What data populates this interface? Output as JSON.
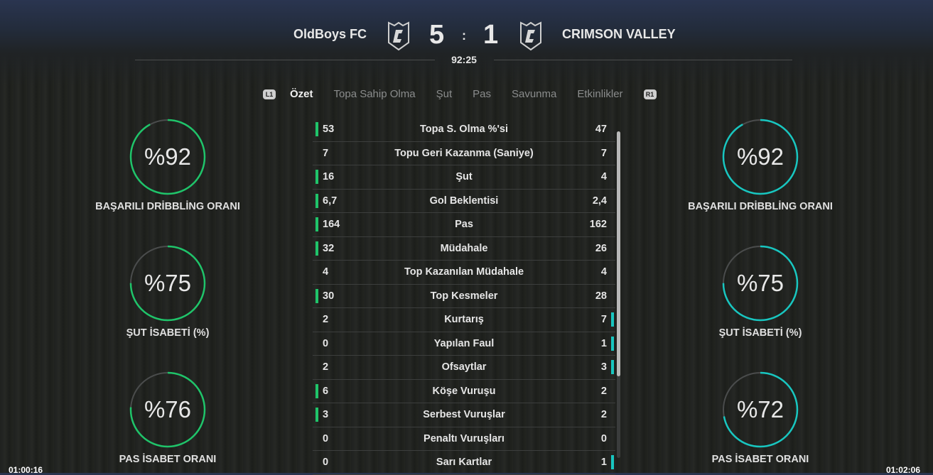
{
  "header": {
    "home_team": "OldBoys FC",
    "away_team": "CRIMSON VALLEY",
    "home_score": "5",
    "separator": ":",
    "away_score": "1",
    "clock": "92:25"
  },
  "tabs": {
    "left_button": "L1",
    "right_button": "R1",
    "items": [
      {
        "label": "Özet",
        "active": true
      },
      {
        "label": "Topa Sahip Olma"
      },
      {
        "label": "Şut"
      },
      {
        "label": "Pas"
      },
      {
        "label": "Savunma"
      },
      {
        "label": "Etkinlikler"
      }
    ]
  },
  "stats": [
    {
      "label": "Topa S. Olma %'si",
      "home": "53",
      "away": "47",
      "lead": "home"
    },
    {
      "label": "Topu Geri Kazanma (Saniye)",
      "home": "7",
      "away": "7",
      "lead": ""
    },
    {
      "label": "Şut",
      "home": "16",
      "away": "4",
      "lead": "home"
    },
    {
      "label": "Gol Beklentisi",
      "home": "6,7",
      "away": "2,4",
      "lead": "home"
    },
    {
      "label": "Pas",
      "home": "164",
      "away": "162",
      "lead": "home"
    },
    {
      "label": "Müdahale",
      "home": "32",
      "away": "26",
      "lead": "home"
    },
    {
      "label": "Top Kazanılan Müdahale",
      "home": "4",
      "away": "4",
      "lead": ""
    },
    {
      "label": "Top Kesmeler",
      "home": "30",
      "away": "28",
      "lead": "home"
    },
    {
      "label": "Kurtarış",
      "home": "2",
      "away": "7",
      "lead": "away"
    },
    {
      "label": "Yapılan Faul",
      "home": "0",
      "away": "1",
      "lead": "away"
    },
    {
      "label": "Ofsaytlar",
      "home": "2",
      "away": "3",
      "lead": "away"
    },
    {
      "label": "Köşe Vuruşu",
      "home": "6",
      "away": "2",
      "lead": "home"
    },
    {
      "label": "Serbest Vuruşlar",
      "home": "3",
      "away": "2",
      "lead": "home"
    },
    {
      "label": "Penaltı Vuruşları",
      "home": "0",
      "away": "0",
      "lead": ""
    },
    {
      "label": "Sarı Kartlar",
      "home": "0",
      "away": "1",
      "lead": "away"
    }
  ],
  "home_rings": [
    {
      "text": "%92",
      "value": 92,
      "label": "BAŞARILI DRİBBLİNG ORANI"
    },
    {
      "text": "%75",
      "value": 75,
      "label": "ŞUT İSABETİ (%)"
    },
    {
      "text": "%76",
      "value": 76,
      "label": "PAS İSABET ORANI"
    }
  ],
  "away_rings": [
    {
      "text": "%92",
      "value": 92,
      "label": "BAŞARILI DRİBBLİNG ORANI"
    },
    {
      "text": "%75",
      "value": 75,
      "label": "ŞUT İSABETİ (%)"
    },
    {
      "text": "%72",
      "value": 72,
      "label": "PAS İSABET ORANI"
    }
  ],
  "colors": {
    "home": "#1fc46a",
    "away": "#18c6c0",
    "ring_track": "#4a4c4c"
  },
  "footer": {
    "left_time": "01:00:16",
    "right_time": "01:02:06"
  }
}
